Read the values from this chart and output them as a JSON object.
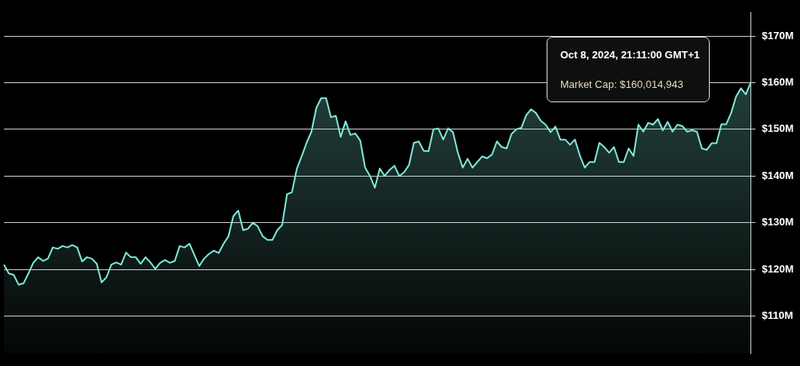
{
  "chart_data": {
    "type": "area",
    "categories": [
      null,
      null,
      null,
      null,
      null,
      null,
      null,
      null,
      null,
      null,
      null,
      null,
      null,
      null,
      null,
      null,
      null,
      null,
      null,
      null,
      null,
      null,
      null,
      null,
      null,
      null,
      null,
      null,
      null,
      null,
      null,
      null,
      null,
      null,
      null,
      null,
      null,
      null,
      null,
      null,
      null,
      null,
      null,
      null,
      null,
      null,
      null,
      null,
      null,
      null,
      null,
      null,
      null,
      null,
      null,
      null,
      null,
      null,
      null,
      null,
      null,
      null,
      null,
      null,
      null,
      null,
      null,
      null,
      null,
      null,
      null,
      null,
      null,
      null,
      null,
      null,
      null,
      null,
      null,
      null,
      null,
      null,
      null,
      null,
      null,
      null,
      null,
      null,
      null,
      null,
      null,
      null,
      null,
      null,
      null,
      null,
      null,
      null,
      null,
      null,
      null,
      null,
      null,
      null,
      null,
      null,
      null,
      null,
      null,
      null,
      null,
      null,
      null,
      null,
      null,
      null,
      null,
      null,
      null,
      null,
      null,
      null,
      null,
      null,
      null,
      null,
      null,
      null,
      null,
      null,
      null,
      null,
      null,
      null,
      null,
      null,
      null,
      null,
      null,
      null,
      null,
      null,
      null,
      null,
      null,
      null,
      null,
      null,
      null,
      null,
      null,
      null,
      null,
      null
    ],
    "series": [
      {
        "color": "#7fe8d6",
        "values": [
          121.0,
          119.1,
          118.8,
          116.7,
          117.0,
          119.1,
          121.4,
          122.6,
          121.8,
          122.3,
          124.7,
          124.4,
          125.0,
          124.7,
          125.2,
          124.7,
          121.7,
          122.6,
          122.3,
          121.2,
          117.2,
          118.3,
          121.0,
          121.5,
          121.0,
          123.6,
          122.6,
          122.6,
          121.2,
          122.6,
          121.5,
          120.1,
          121.4,
          122.0,
          121.4,
          121.8,
          125.0,
          124.7,
          125.5,
          123.1,
          120.7,
          122.3,
          123.3,
          124.0,
          123.5,
          125.5,
          127.1,
          131.4,
          132.6,
          128.4,
          128.7,
          130.0,
          129.2,
          127.1,
          126.3,
          126.3,
          128.4,
          129.5,
          136.1,
          136.5,
          141.5,
          144.2,
          147.1,
          149.5,
          154.6,
          156.7,
          156.7,
          152.6,
          152.9,
          148.4,
          151.7,
          148.8,
          149.1,
          147.6,
          141.8,
          140.0,
          137.5,
          141.6,
          140.0,
          141.3,
          142.2,
          140.0,
          140.8,
          142.4,
          147.1,
          147.4,
          145.4,
          145.3,
          150.0,
          150.2,
          147.8,
          150.2,
          149.4,
          145.0,
          141.8,
          143.7,
          141.8,
          143.0,
          144.2,
          143.8,
          144.6,
          147.4,
          146.2,
          145.9,
          149.0,
          150.0,
          150.3,
          153.0,
          154.3,
          153.5,
          151.8,
          151.0,
          149.4,
          150.6,
          147.8,
          147.8,
          146.7,
          147.8,
          144.4,
          141.8,
          143.0,
          143.0,
          147.1,
          146.2,
          145.0,
          146.2,
          143.0,
          143.0,
          145.9,
          144.3,
          151.0,
          149.5,
          151.4,
          151.0,
          152.2,
          149.8,
          151.6,
          149.5,
          151.0,
          150.7,
          149.5,
          149.8,
          149.5,
          145.9,
          145.6,
          147.0,
          147.0,
          151.1,
          151.1,
          153.5,
          157.0,
          158.8,
          157.5,
          160.01
        ]
      }
    ],
    "ylim": [
      102,
      175
    ],
    "yticks": [
      {
        "value": 110,
        "label": "$110M"
      },
      {
        "value": 120,
        "label": "$120M"
      },
      {
        "value": 130,
        "label": "$130M"
      },
      {
        "value": 140,
        "label": "$140M"
      },
      {
        "value": 150,
        "label": "$150M"
      },
      {
        "value": 160,
        "label": "$160M"
      },
      {
        "value": 170,
        "label": "$170M"
      }
    ],
    "grid": "y",
    "legend": false,
    "marker": "none",
    "line_style": "solid",
    "tick_labels": "y",
    "annotations": [
      "Oct 8, 2024, 21:11:00 GMT+1",
      "Market Cap: $160,014,943"
    ]
  }
}
